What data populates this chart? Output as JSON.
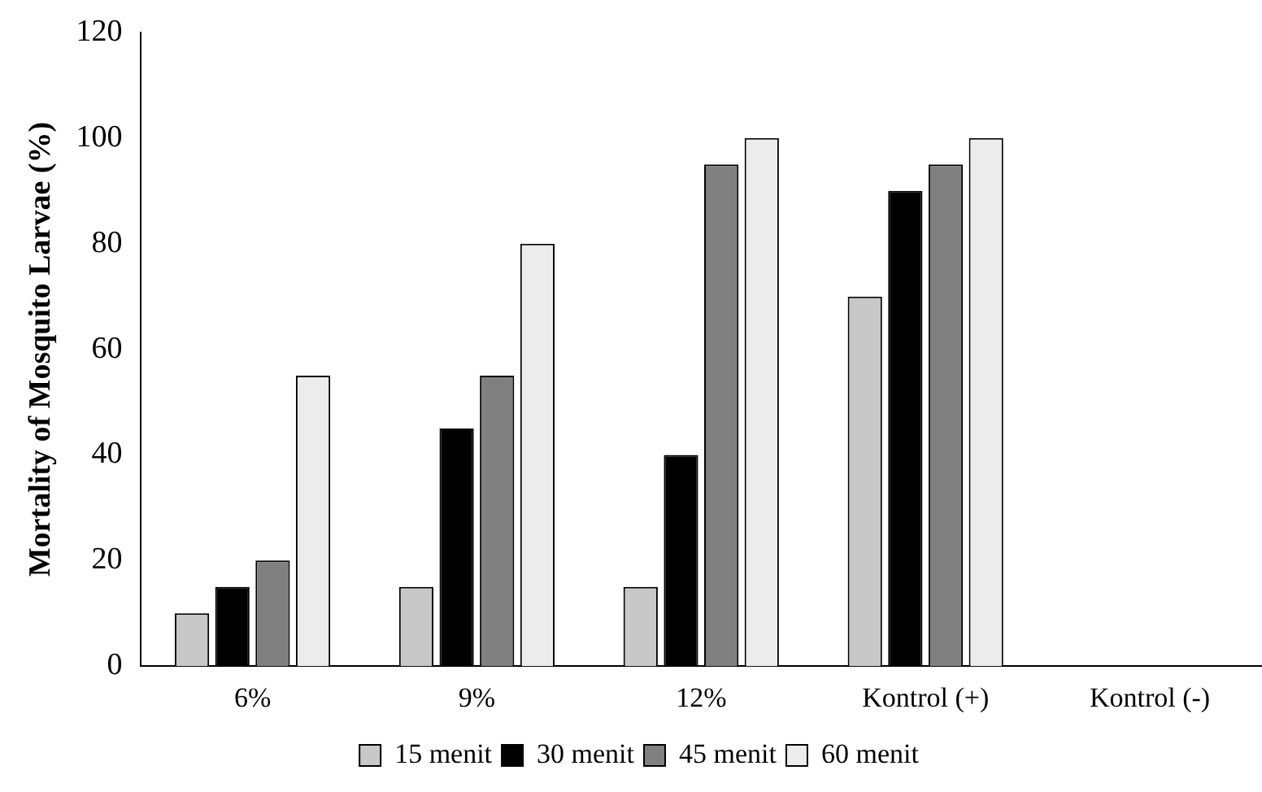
{
  "chart_data": {
    "type": "bar",
    "ylabel": "Mortality of Mosquito Larvae (%)",
    "categories": [
      "6%",
      "9%",
      "12%",
      "Kontrol (+)",
      "Kontrol (-)"
    ],
    "series": [
      {
        "name": "15 menit",
        "color": "#c8c8c8",
        "values": [
          10,
          15,
          15,
          70,
          0
        ]
      },
      {
        "name": "30 menit",
        "color": "#000000",
        "values": [
          15,
          45,
          40,
          90,
          0
        ]
      },
      {
        "name": "45 menit",
        "color": "#808080",
        "values": [
          20,
          55,
          95,
          95,
          0
        ]
      },
      {
        "name": "60 menit",
        "color": "#ececec",
        "values": [
          55,
          80,
          100,
          100,
          0
        ]
      }
    ],
    "ylim": [
      0,
      120
    ],
    "yticks": [
      0,
      20,
      40,
      60,
      80,
      100,
      120
    ],
    "grid": false,
    "legend": "bottom"
  }
}
